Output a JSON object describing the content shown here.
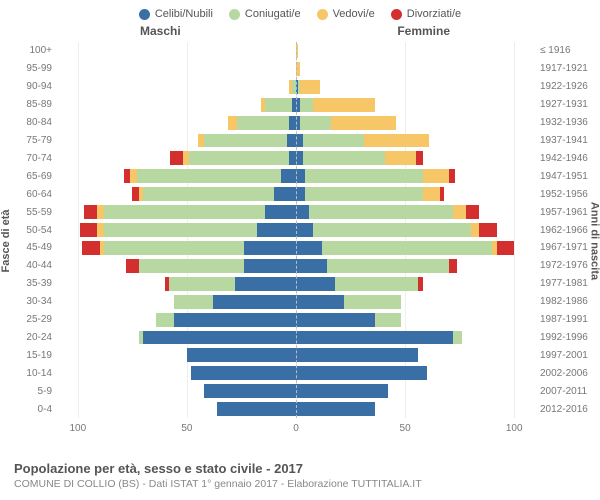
{
  "legend": [
    {
      "label": "Celibi/Nubili",
      "color": "#3a6fa6"
    },
    {
      "label": "Coniugati/e",
      "color": "#b7d8a1"
    },
    {
      "label": "Vedovi/e",
      "color": "#f6c667"
    },
    {
      "label": "Divorziati/e",
      "color": "#d32f2f"
    }
  ],
  "headers": {
    "male": "Maschi",
    "female": "Femmine"
  },
  "yaxis_left_title": "Fasce di età",
  "yaxis_right_title": "Anni di nascita",
  "x_max": 110,
  "x_ticks": [
    100,
    50,
    0,
    50,
    100
  ],
  "footer_title": "Popolazione per età, sesso e stato civile - 2017",
  "footer_sub": "COMUNE DI COLLIO (BS) - Dati ISTAT 1° gennaio 2017 - Elaborazione TUTTITALIA.IT",
  "rows": [
    {
      "age": "100+",
      "birth": "≤ 1916",
      "m": [
        0,
        0,
        0,
        0
      ],
      "f": [
        0,
        0,
        1,
        0
      ]
    },
    {
      "age": "95-99",
      "birth": "1917-1921",
      "m": [
        0,
        0,
        0,
        0
      ],
      "f": [
        0,
        0,
        2,
        0
      ]
    },
    {
      "age": "90-94",
      "birth": "1922-1926",
      "m": [
        0,
        2,
        1,
        0
      ],
      "f": [
        1,
        1,
        9,
        0
      ]
    },
    {
      "age": "85-89",
      "birth": "1927-1931",
      "m": [
        2,
        12,
        2,
        0
      ],
      "f": [
        2,
        6,
        28,
        0
      ]
    },
    {
      "age": "80-84",
      "birth": "1932-1936",
      "m": [
        3,
        24,
        4,
        0
      ],
      "f": [
        2,
        14,
        30,
        0
      ]
    },
    {
      "age": "75-79",
      "birth": "1937-1941",
      "m": [
        4,
        38,
        3,
        0
      ],
      "f": [
        3,
        28,
        30,
        0
      ]
    },
    {
      "age": "70-74",
      "birth": "1942-1946",
      "m": [
        3,
        46,
        3,
        6
      ],
      "f": [
        3,
        38,
        14,
        3
      ]
    },
    {
      "age": "65-69",
      "birth": "1947-1951",
      "m": [
        7,
        66,
        3,
        3
      ],
      "f": [
        4,
        54,
        12,
        3
      ]
    },
    {
      "age": "60-64",
      "birth": "1952-1956",
      "m": [
        10,
        60,
        2,
        3
      ],
      "f": [
        4,
        54,
        8,
        2
      ]
    },
    {
      "age": "55-59",
      "birth": "1957-1961",
      "m": [
        14,
        74,
        3,
        6
      ],
      "f": [
        6,
        66,
        6,
        6
      ]
    },
    {
      "age": "50-54",
      "birth": "1962-1966",
      "m": [
        18,
        70,
        3,
        8
      ],
      "f": [
        8,
        72,
        4,
        8
      ]
    },
    {
      "age": "45-49",
      "birth": "1967-1971",
      "m": [
        24,
        64,
        2,
        8
      ],
      "f": [
        12,
        78,
        2,
        8
      ]
    },
    {
      "age": "40-44",
      "birth": "1972-1976",
      "m": [
        24,
        48,
        0,
        6
      ],
      "f": [
        14,
        56,
        0,
        4
      ]
    },
    {
      "age": "35-39",
      "birth": "1977-1981",
      "m": [
        28,
        30,
        0,
        2
      ],
      "f": [
        18,
        38,
        0,
        2
      ]
    },
    {
      "age": "30-34",
      "birth": "1982-1986",
      "m": [
        38,
        18,
        0,
        0
      ],
      "f": [
        22,
        26,
        0,
        0
      ]
    },
    {
      "age": "25-29",
      "birth": "1987-1991",
      "m": [
        56,
        8,
        0,
        0
      ],
      "f": [
        36,
        12,
        0,
        0
      ]
    },
    {
      "age": "20-24",
      "birth": "1992-1996",
      "m": [
        70,
        2,
        0,
        0
      ],
      "f": [
        72,
        4,
        0,
        0
      ]
    },
    {
      "age": "15-19",
      "birth": "1997-2001",
      "m": [
        50,
        0,
        0,
        0
      ],
      "f": [
        56,
        0,
        0,
        0
      ]
    },
    {
      "age": "10-14",
      "birth": "2002-2006",
      "m": [
        48,
        0,
        0,
        0
      ],
      "f": [
        60,
        0,
        0,
        0
      ]
    },
    {
      "age": "5-9",
      "birth": "2007-2011",
      "m": [
        42,
        0,
        0,
        0
      ],
      "f": [
        42,
        0,
        0,
        0
      ]
    },
    {
      "age": "0-4",
      "birth": "2012-2016",
      "m": [
        36,
        0,
        0,
        0
      ],
      "f": [
        36,
        0,
        0,
        0
      ]
    }
  ]
}
